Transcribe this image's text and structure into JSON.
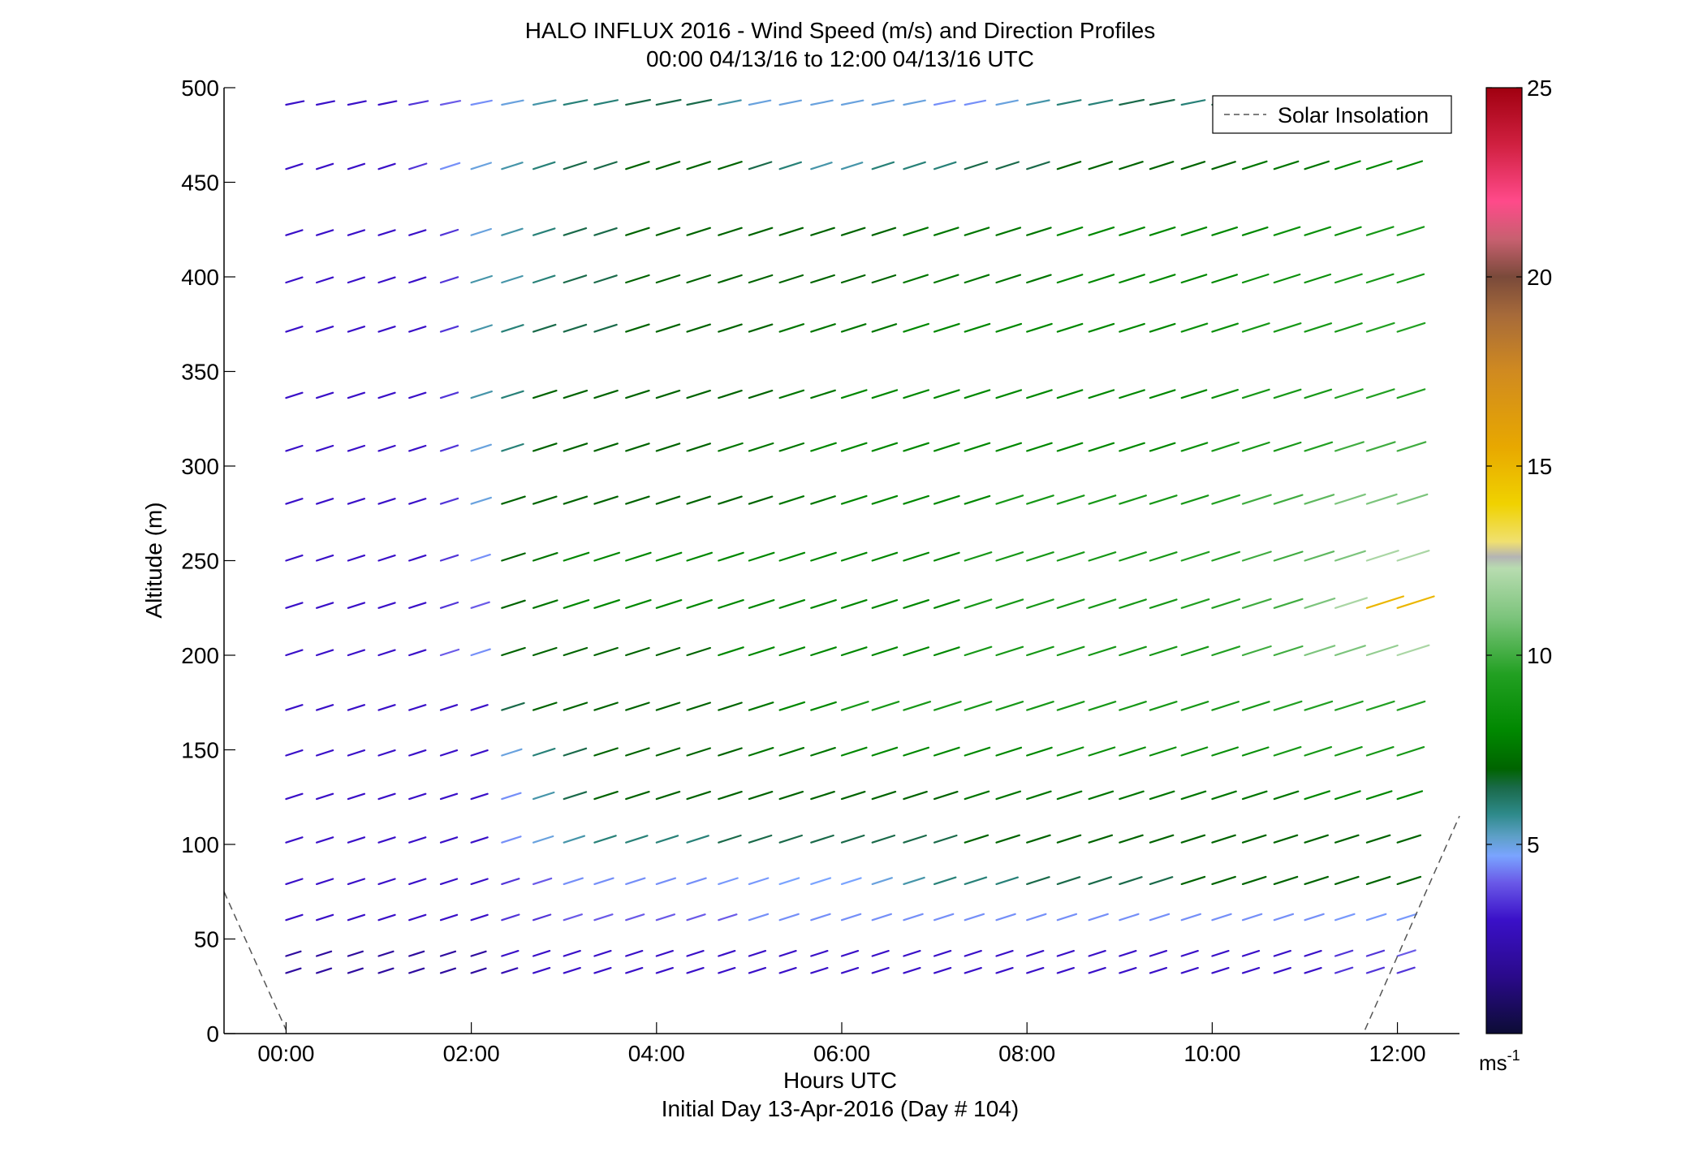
{
  "chart_data": {
    "type": "wind barbs (arrows) time-altitude plot",
    "title": "HALO INFLUX 2016 - Wind Speed (m/s) and Direction Profiles",
    "subtitle": "00:00 04/13/16 to 12:00 04/13/16  UTC",
    "xlabel": "Hours UTC",
    "xlabel2": "Initial Day 13-Apr-2016 (Day # 104)",
    "ylabel": "Altitude (m)",
    "xlim_hours": [
      -0.67,
      12.67
    ],
    "ylim": [
      0,
      500
    ],
    "x_ticks": [
      {
        "value": 0,
        "label": "00:00"
      },
      {
        "value": 2,
        "label": "02:00"
      },
      {
        "value": 4,
        "label": "04:00"
      },
      {
        "value": 6,
        "label": "06:00"
      },
      {
        "value": 8,
        "label": "08:00"
      },
      {
        "value": 10,
        "label": "10:00"
      },
      {
        "value": 12,
        "label": "12:00"
      }
    ],
    "y_ticks": [
      {
        "value": 0,
        "label": "0"
      },
      {
        "value": 50,
        "label": "50"
      },
      {
        "value": 100,
        "label": "100"
      },
      {
        "value": 150,
        "label": "150"
      },
      {
        "value": 200,
        "label": "200"
      },
      {
        "value": 250,
        "label": "250"
      },
      {
        "value": 300,
        "label": "300"
      },
      {
        "value": 350,
        "label": "350"
      },
      {
        "value": 400,
        "label": "400"
      },
      {
        "value": 450,
        "label": "450"
      },
      {
        "value": 500,
        "label": "500"
      }
    ],
    "legend": {
      "label": "Solar Insolation",
      "placement": "top-right"
    },
    "colorbar": {
      "min": 0,
      "max": 25,
      "ticks": [
        {
          "value": 5,
          "label": "5"
        },
        {
          "value": 10,
          "label": "10"
        },
        {
          "value": 15,
          "label": "15"
        },
        {
          "value": 20,
          "label": "20"
        },
        {
          "value": 25,
          "label": "25"
        }
      ],
      "unit_label": "ms",
      "unit_exponent": "-1",
      "stops": [
        [
          0,
          "#0c0c35"
        ],
        [
          1.5,
          "#2a0a8a"
        ],
        [
          3,
          "#3a10c8"
        ],
        [
          4,
          "#6a5ae8"
        ],
        [
          4.7,
          "#7aa4ff"
        ],
        [
          5.2,
          "#5ea0c8"
        ],
        [
          5.8,
          "#2e8a8a"
        ],
        [
          6.5,
          "#1a6a4a"
        ],
        [
          7,
          "#006400"
        ],
        [
          8,
          "#008800"
        ],
        [
          9.5,
          "#22a022"
        ],
        [
          11,
          "#7cc47c"
        ],
        [
          12.3,
          "#b8dcb0"
        ],
        [
          12.6,
          "#b4b4b4"
        ],
        [
          13,
          "#f0e070"
        ],
        [
          14,
          "#f0d200"
        ],
        [
          15.5,
          "#e8a800"
        ],
        [
          17.5,
          "#d08a20"
        ],
        [
          19,
          "#a66a3a"
        ],
        [
          20,
          "#7a4a3a"
        ],
        [
          21,
          "#c86070"
        ],
        [
          22,
          "#ff4a8a"
        ],
        [
          23.5,
          "#d02040"
        ],
        [
          25,
          "#a00010"
        ]
      ]
    },
    "solar_insolation_curve": {
      "style": "dashed gray",
      "left_segment": {
        "hours": [
          -0.67,
          0.0
        ],
        "altitude": [
          75,
          2
        ]
      },
      "right_segment": {
        "hours": [
          11.65,
          12.67
        ],
        "altitude": [
          2,
          115
        ]
      }
    },
    "arrow_times_hours": [
      0.0,
      0.33,
      0.67,
      1.0,
      1.33,
      1.67,
      2.0,
      2.33,
      2.67,
      3.0,
      3.33,
      3.67,
      4.0,
      4.33,
      4.67,
      5.0,
      5.33,
      5.67,
      6.0,
      6.33,
      6.67,
      7.0,
      7.33,
      7.67,
      8.0,
      8.33,
      8.67,
      9.0,
      9.33,
      9.67,
      10.0,
      10.33,
      10.67,
      11.0,
      11.33,
      11.67,
      12.0
    ],
    "profile_levels": [
      {
        "altitude": 32,
        "start": 0.0,
        "wind_from_deg": 300,
        "speed": [
          2,
          2,
          2,
          2,
          2,
          2,
          2,
          2.5,
          3,
          3,
          3,
          3,
          3,
          3,
          3,
          3,
          3,
          3,
          3,
          3,
          3,
          3,
          3,
          3,
          3,
          3,
          3,
          3,
          3,
          3,
          3,
          3,
          3,
          3,
          3.5,
          3.5,
          3.5
        ]
      },
      {
        "altitude": 41,
        "start": 0.0,
        "wind_from_deg": 300,
        "speed": [
          2,
          2,
          2,
          2,
          2,
          2,
          2,
          3,
          3,
          3,
          3,
          3,
          3,
          3,
          3,
          3,
          3,
          3,
          3,
          3,
          3,
          3,
          3,
          3,
          3,
          3,
          3,
          3,
          3,
          3,
          3,
          3,
          3,
          3,
          3.5,
          3.5,
          4
        ]
      },
      {
        "altitude": 60,
        "start": 0.0,
        "wind_from_deg": 300,
        "speed": [
          3,
          3,
          3,
          3,
          3,
          3,
          3,
          3.5,
          3.5,
          4,
          4,
          4,
          4,
          4,
          4,
          4.5,
          4.5,
          4.5,
          4.5,
          4.5,
          4.5,
          4.5,
          4.5,
          4.5,
          4.5,
          4.5,
          4.5,
          4.5,
          4.5,
          4.5,
          4.5,
          4.5,
          4.5,
          4.5,
          4.6,
          4.6,
          4.6
        ]
      },
      {
        "altitude": 79,
        "start": 0.0,
        "wind_from_deg": 300,
        "speed": [
          3,
          3,
          3,
          3,
          3,
          3,
          3,
          3.5,
          4,
          4.5,
          4.5,
          4.5,
          4.5,
          4.5,
          4.6,
          4.6,
          4.7,
          4.7,
          4.7,
          5,
          5.5,
          6,
          6,
          6,
          6.5,
          6.5,
          6.5,
          6.5,
          6.5,
          7,
          7,
          7,
          7,
          7,
          7,
          7,
          7
        ]
      },
      {
        "altitude": 101,
        "start": 0.0,
        "wind_from_deg": 300,
        "speed": [
          3,
          3,
          3,
          3,
          3,
          3,
          3,
          4.5,
          5,
          5.5,
          6,
          6,
          6,
          6,
          6.5,
          6.5,
          6.5,
          6.5,
          6.5,
          6.5,
          6.5,
          6.5,
          7,
          7,
          7,
          7,
          7,
          7,
          7,
          7,
          7,
          7,
          7,
          7,
          7,
          7,
          7
        ]
      },
      {
        "altitude": 124,
        "start": 0.0,
        "wind_from_deg": 300,
        "speed": [
          3,
          3,
          3,
          3,
          3,
          3,
          3,
          4.5,
          5.5,
          6.5,
          7,
          7,
          7,
          7,
          7,
          7,
          7,
          7,
          7,
          7,
          7,
          7,
          7.5,
          7.5,
          7.5,
          7.5,
          7.5,
          7.5,
          7.5,
          7.5,
          7.5,
          7.5,
          7.5,
          8,
          8,
          8,
          8
        ]
      },
      {
        "altitude": 147,
        "start": 0.0,
        "wind_from_deg": 300,
        "speed": [
          3,
          3,
          3,
          3,
          3,
          3,
          3,
          5,
          6,
          6.5,
          7,
          7,
          7,
          7,
          7,
          7.5,
          7.5,
          7.5,
          8,
          8,
          8,
          8,
          8,
          8,
          8,
          8.5,
          8.5,
          8.5,
          8.5,
          8.5,
          8.5,
          8.5,
          9,
          9,
          9,
          9,
          9
        ]
      },
      {
        "altitude": 171,
        "start": 0.0,
        "wind_from_deg": 300,
        "speed": [
          3,
          3,
          3,
          3,
          3,
          3,
          3,
          6.5,
          7,
          7,
          7,
          7,
          7,
          7,
          7,
          7.5,
          8,
          8,
          9,
          9,
          9,
          9,
          9,
          9,
          9,
          9,
          9,
          9,
          9,
          9,
          9,
          9,
          9.5,
          9.5,
          9.5,
          9.5,
          9.5
        ]
      },
      {
        "altitude": 200,
        "start": 0.0,
        "wind_from_deg": 300,
        "speed": [
          3,
          3,
          3,
          3,
          3,
          4,
          4.5,
          7,
          7,
          7,
          7,
          7,
          7,
          7,
          8,
          8,
          8,
          8,
          8,
          8,
          8,
          8,
          9,
          9,
          9,
          9,
          9,
          9,
          9,
          9,
          9.5,
          10,
          10,
          11,
          11,
          11.5,
          12
        ]
      },
      {
        "altitude": 225,
        "start": 0.0,
        "wind_from_deg": 300,
        "speed": [
          3,
          3,
          3,
          3,
          3,
          3.5,
          4,
          7,
          7.5,
          8,
          8,
          8,
          8,
          8,
          8,
          8,
          8,
          8,
          8,
          8,
          8,
          8,
          9,
          9,
          9,
          9,
          9,
          9,
          9,
          9.5,
          9.5,
          10,
          10,
          11,
          12,
          15,
          15
        ]
      },
      {
        "altitude": 250,
        "start": 0.0,
        "wind_from_deg": 300,
        "speed": [
          3,
          3,
          3,
          3,
          3,
          3.5,
          4.5,
          7,
          7.5,
          8,
          8,
          8,
          8,
          8,
          8,
          8,
          8,
          8,
          8,
          8,
          8,
          8,
          9,
          9,
          9,
          9,
          9,
          9,
          9,
          9.5,
          9.5,
          10,
          10,
          10.5,
          11,
          12,
          12
        ]
      },
      {
        "altitude": 280,
        "start": 0.0,
        "wind_from_deg": 300,
        "speed": [
          3,
          3,
          3,
          3,
          3,
          3.5,
          5,
          7,
          7,
          7,
          7,
          7,
          7,
          7,
          7,
          7,
          7.5,
          7.5,
          8,
          8,
          8,
          8,
          8,
          9,
          9,
          9,
          9,
          9,
          9,
          9,
          9.5,
          10,
          10,
          10.5,
          11,
          11,
          11
        ]
      },
      {
        "altitude": 308,
        "start": 0.0,
        "wind_from_deg": 300,
        "speed": [
          3,
          3,
          3,
          3,
          3,
          3.5,
          5,
          6,
          7,
          7,
          7,
          7,
          7,
          7,
          7.5,
          7.5,
          7.5,
          8,
          8,
          8,
          8,
          8,
          8,
          8,
          8,
          8,
          8,
          8,
          8,
          8.5,
          9,
          9,
          9,
          9.5,
          10,
          10,
          10
        ]
      },
      {
        "altitude": 336,
        "start": 0.0,
        "wind_from_deg": 300,
        "speed": [
          3,
          3,
          3,
          3,
          3,
          3.5,
          5.5,
          6,
          7,
          7,
          7,
          7,
          7,
          7,
          7,
          7,
          7.5,
          7.5,
          8,
          8,
          8,
          8,
          8,
          8,
          8,
          8,
          8,
          8,
          8,
          8,
          8.5,
          9,
          9,
          9,
          9.5,
          9.5,
          9.5
        ]
      },
      {
        "altitude": 371,
        "start": 0.0,
        "wind_from_deg": 300,
        "speed": [
          3,
          3,
          3,
          3,
          3,
          3.5,
          5.5,
          6,
          6.5,
          6.5,
          6.5,
          7,
          7,
          7,
          7,
          7,
          7.5,
          7.5,
          7.5,
          7.5,
          8,
          8,
          8,
          8,
          8,
          8,
          8,
          8,
          8,
          8.5,
          8.5,
          9,
          9,
          9,
          9,
          9.5,
          9.5
        ]
      },
      {
        "altitude": 397,
        "start": 0.0,
        "wind_from_deg": 300,
        "speed": [
          3,
          3,
          3,
          3,
          3,
          3.5,
          5.5,
          5.5,
          6,
          6.5,
          6.5,
          7,
          7,
          7,
          7,
          7,
          7,
          7,
          7,
          7,
          7.5,
          7.5,
          7.5,
          7.5,
          7.5,
          8,
          8,
          8,
          8,
          8,
          8,
          8.5,
          8.5,
          8.5,
          9,
          9,
          9
        ]
      },
      {
        "altitude": 422,
        "start": 0.0,
        "wind_from_deg": 300,
        "speed": [
          3,
          3,
          3,
          3,
          3,
          3.5,
          5,
          5.5,
          6,
          6.5,
          6.5,
          7,
          7,
          7,
          7,
          7,
          7,
          7,
          7,
          7,
          7.5,
          7.5,
          7.5,
          7.5,
          7.5,
          8,
          8,
          8,
          8,
          8,
          8,
          8,
          8.5,
          8.5,
          8.5,
          9,
          9
        ]
      },
      {
        "altitude": 457,
        "start": 0.0,
        "wind_from_deg": 300,
        "speed": [
          3,
          3,
          3,
          3,
          3.5,
          4.5,
          5,
          5.5,
          6,
          6.5,
          6.5,
          7,
          7,
          7,
          7,
          6.5,
          6,
          5.5,
          5.5,
          6,
          6,
          6,
          6.5,
          6.5,
          6.5,
          7,
          7,
          7,
          7,
          7,
          7,
          7.5,
          7.5,
          7.5,
          8,
          8,
          8
        ]
      },
      {
        "altitude": 491,
        "start": 0.0,
        "wind_from_deg": 290,
        "speed": [
          3,
          3,
          3,
          3,
          3.5,
          4,
          4.5,
          5,
          5.5,
          6,
          6,
          6.5,
          6.5,
          6.5,
          5.5,
          5,
          5,
          5,
          5,
          5,
          5,
          4.5,
          4.5,
          5,
          5.5,
          6,
          6,
          6.5,
          6.5,
          6,
          6.5,
          7,
          7,
          null,
          null,
          null,
          null
        ]
      }
    ],
    "grid": false
  }
}
